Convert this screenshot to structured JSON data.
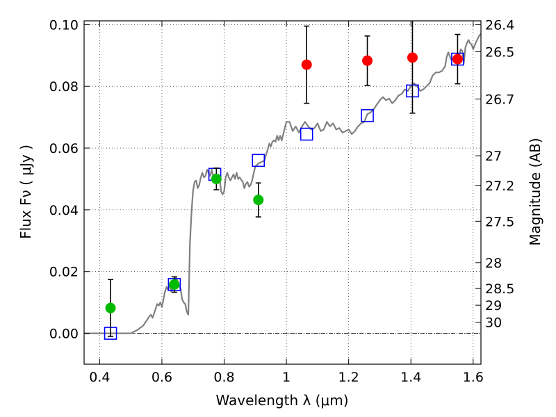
{
  "chart_data": {
    "type": "scatter",
    "xlabel": "Wavelength  λ (μm)",
    "ylabel": "Flux  Fν  ( μJy )",
    "y2label": "Magnitude (AB)",
    "xlim": [
      0.35,
      1.625
    ],
    "ylim": [
      -0.01,
      0.1012
    ],
    "x_ticks": [
      0.4,
      0.6,
      0.8,
      1.0,
      1.2,
      1.4,
      1.6
    ],
    "x_tick_labels": [
      "0.4",
      "0.6",
      "0.8",
      "1",
      "1.2",
      "1.4",
      "1.6"
    ],
    "y_ticks": [
      0.0,
      0.02,
      0.04,
      0.06,
      0.08,
      0.1
    ],
    "y_tick_labels": [
      "0.00",
      "0.02",
      "0.04",
      "0.06",
      "0.08",
      "0.10"
    ],
    "mag_ticks": [
      {
        "label": "26.4",
        "flux": 0.1
      },
      {
        "label": "26.5",
        "flux": 0.0912
      },
      {
        "label": "26.7",
        "flux": 0.0759
      },
      {
        "label": "27",
        "flux": 0.0575
      },
      {
        "label": "27.2",
        "flux": 0.0479
      },
      {
        "label": "27.5",
        "flux": 0.0363
      },
      {
        "label": "28",
        "flux": 0.0229
      },
      {
        "label": "28.5",
        "flux": 0.0145
      },
      {
        "label": "29",
        "flux": 0.0091
      },
      {
        "label": "30",
        "flux": 0.0036
      }
    ],
    "grid": true,
    "zero_line": true,
    "colors": {
      "spectrum": "#808080",
      "model": "#0000ff",
      "green": "#00bb00",
      "red": "#ff0000",
      "errorbar": "#000000"
    },
    "series": [
      {
        "kind": "line",
        "points": [
          [
            0.35,
            0.0
          ],
          [
            0.5,
            0.0
          ],
          [
            0.52,
            0.001
          ],
          [
            0.54,
            0.0025
          ],
          [
            0.55,
            0.004
          ],
          [
            0.56,
            0.0055
          ],
          [
            0.565,
            0.006
          ],
          [
            0.57,
            0.005
          ],
          [
            0.575,
            0.0065
          ],
          [
            0.58,
            0.008
          ],
          [
            0.585,
            0.0095
          ],
          [
            0.59,
            0.009
          ],
          [
            0.595,
            0.01
          ],
          [
            0.6,
            0.0085
          ],
          [
            0.605,
            0.011
          ],
          [
            0.61,
            0.0135
          ],
          [
            0.615,
            0.015
          ],
          [
            0.62,
            0.014
          ],
          [
            0.625,
            0.016
          ],
          [
            0.63,
            0.0135
          ],
          [
            0.635,
            0.015
          ],
          [
            0.64,
            0.016
          ],
          [
            0.645,
            0.018
          ],
          [
            0.65,
            0.017
          ],
          [
            0.655,
            0.0155
          ],
          [
            0.66,
            0.0145
          ],
          [
            0.665,
            0.011
          ],
          [
            0.67,
            0.01
          ],
          [
            0.675,
            0.0095
          ],
          [
            0.68,
            0.007
          ],
          [
            0.685,
            0.006
          ],
          [
            0.69,
            0.029
          ],
          [
            0.695,
            0.039
          ],
          [
            0.7,
            0.046
          ],
          [
            0.705,
            0.049
          ],
          [
            0.71,
            0.0495
          ],
          [
            0.715,
            0.047
          ],
          [
            0.72,
            0.048
          ],
          [
            0.725,
            0.0505
          ],
          [
            0.73,
            0.052
          ],
          [
            0.735,
            0.0505
          ],
          [
            0.74,
            0.051
          ],
          [
            0.745,
            0.053
          ],
          [
            0.75,
            0.052
          ],
          [
            0.755,
            0.051
          ],
          [
            0.76,
            0.053
          ],
          [
            0.765,
            0.0505
          ],
          [
            0.77,
            0.0515
          ],
          [
            0.775,
            0.05
          ],
          [
            0.78,
            0.049
          ],
          [
            0.785,
            0.051
          ],
          [
            0.79,
            0.046
          ],
          [
            0.795,
            0.045
          ],
          [
            0.8,
            0.046
          ],
          [
            0.805,
            0.0505
          ],
          [
            0.81,
            0.052
          ],
          [
            0.815,
            0.0505
          ],
          [
            0.82,
            0.0495
          ],
          [
            0.83,
            0.0515
          ],
          [
            0.835,
            0.05
          ],
          [
            0.84,
            0.052
          ],
          [
            0.845,
            0.05
          ],
          [
            0.85,
            0.0505
          ],
          [
            0.86,
            0.049
          ],
          [
            0.865,
            0.047
          ],
          [
            0.87,
            0.0485
          ],
          [
            0.875,
            0.049
          ],
          [
            0.88,
            0.0475
          ],
          [
            0.885,
            0.048
          ],
          [
            0.89,
            0.0495
          ],
          [
            0.895,
            0.052
          ],
          [
            0.9,
            0.054
          ],
          [
            0.91,
            0.055
          ],
          [
            0.92,
            0.0555
          ],
          [
            0.93,
            0.056
          ],
          [
            0.935,
            0.058
          ],
          [
            0.94,
            0.0595
          ],
          [
            0.945,
            0.0615
          ],
          [
            0.95,
            0.0605
          ],
          [
            0.955,
            0.062
          ],
          [
            0.96,
            0.0625
          ],
          [
            0.965,
            0.062
          ],
          [
            0.97,
            0.064
          ],
          [
            0.975,
            0.0625
          ],
          [
            0.98,
            0.064
          ],
          [
            0.985,
            0.0625
          ],
          [
            0.99,
            0.0645
          ],
          [
            1.0,
            0.0685
          ],
          [
            1.01,
            0.0685
          ],
          [
            1.02,
            0.0655
          ],
          [
            1.03,
            0.067
          ],
          [
            1.04,
            0.065
          ],
          [
            1.05,
            0.067
          ],
          [
            1.06,
            0.0685
          ],
          [
            1.07,
            0.067
          ],
          [
            1.08,
            0.066
          ],
          [
            1.09,
            0.0665
          ],
          [
            1.1,
            0.068
          ],
          [
            1.11,
            0.0655
          ],
          [
            1.12,
            0.066
          ],
          [
            1.13,
            0.0685
          ],
          [
            1.14,
            0.067
          ],
          [
            1.15,
            0.068
          ],
          [
            1.16,
            0.066
          ],
          [
            1.17,
            0.0665
          ],
          [
            1.18,
            0.065
          ],
          [
            1.19,
            0.0655
          ],
          [
            1.2,
            0.066
          ],
          [
            1.21,
            0.0645
          ],
          [
            1.22,
            0.0655
          ],
          [
            1.23,
            0.067
          ],
          [
            1.24,
            0.068
          ],
          [
            1.25,
            0.0685
          ],
          [
            1.26,
            0.071
          ],
          [
            1.27,
            0.0715
          ],
          [
            1.28,
            0.0725
          ],
          [
            1.29,
            0.074
          ],
          [
            1.3,
            0.0755
          ],
          [
            1.31,
            0.0765
          ],
          [
            1.32,
            0.0755
          ],
          [
            1.33,
            0.076
          ],
          [
            1.34,
            0.0745
          ],
          [
            1.35,
            0.0755
          ],
          [
            1.36,
            0.077
          ],
          [
            1.37,
            0.0775
          ],
          [
            1.38,
            0.079
          ],
          [
            1.39,
            0.0785
          ],
          [
            1.4,
            0.08
          ],
          [
            1.41,
            0.081
          ],
          [
            1.42,
            0.08
          ],
          [
            1.43,
            0.0785
          ],
          [
            1.44,
            0.079
          ],
          [
            1.45,
            0.08
          ],
          [
            1.46,
            0.081
          ],
          [
            1.47,
            0.0835
          ],
          [
            1.48,
            0.0845
          ],
          [
            1.49,
            0.0845
          ],
          [
            1.5,
            0.085
          ],
          [
            1.51,
            0.0865
          ],
          [
            1.515,
            0.0895
          ],
          [
            1.52,
            0.091
          ],
          [
            1.53,
            0.0885
          ],
          [
            1.54,
            0.0895
          ],
          [
            1.55,
            0.088
          ],
          [
            1.56,
            0.092
          ],
          [
            1.565,
            0.0915
          ],
          [
            1.57,
            0.0875
          ],
          [
            1.575,
            0.0925
          ],
          [
            1.58,
            0.094
          ],
          [
            1.585,
            0.095
          ],
          [
            1.59,
            0.094
          ],
          [
            1.595,
            0.0935
          ],
          [
            1.6,
            0.092
          ],
          [
            1.61,
            0.0945
          ],
          [
            1.62,
            0.0965
          ],
          [
            1.625,
            0.097
          ]
        ]
      },
      {
        "kind": "open-square",
        "x": [
          0.435,
          0.64,
          0.77,
          0.91,
          1.065,
          1.26,
          1.405,
          1.55
        ],
        "y": [
          0.0,
          0.0158,
          0.0515,
          0.056,
          0.0645,
          0.0705,
          0.0785,
          0.0888
        ]
      },
      {
        "kind": "filled-circle",
        "color": "green",
        "x": [
          0.435,
          0.64,
          0.775,
          0.91
        ],
        "y": [
          0.0082,
          0.0158,
          0.05,
          0.0432
        ],
        "yerr": [
          0.0092,
          0.0025,
          0.0035,
          0.0055
        ]
      },
      {
        "kind": "filled-circle",
        "color": "red",
        "x": [
          1.065,
          1.26,
          1.405,
          1.55
        ],
        "y": [
          0.087,
          0.0883,
          0.0893,
          0.0888
        ],
        "yerr": [
          0.0125,
          0.008,
          0.018,
          0.008
        ]
      }
    ]
  }
}
